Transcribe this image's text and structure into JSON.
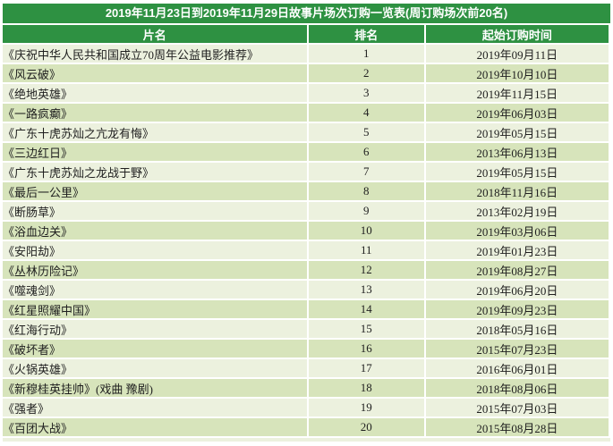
{
  "title": "2019年11月23日到2019年11月29日故事片场次订购一览表(周订购场次前20名)",
  "columns": {
    "film": "片名",
    "rank": "排名",
    "date": "起始订购时间"
  },
  "colors": {
    "header_green": "#2e9142",
    "row_light": "#ecf1de",
    "row_green": "#d7e4bb",
    "header_text": "#ffffff",
    "body_text": "#1f1f1f"
  },
  "rows": [
    {
      "name": "《庆祝中华人民共和国成立70周年公益电影推荐》",
      "rank": "1",
      "date": "2019年09月11日"
    },
    {
      "name": "《风云破》",
      "rank": "2",
      "date": "2019年10月10日"
    },
    {
      "name": "《绝地英雄》",
      "rank": "3",
      "date": "2019年11月15日"
    },
    {
      "name": "《一路疯癫》",
      "rank": "4",
      "date": "2019年06月03日"
    },
    {
      "name": "《广东十虎苏灿之亢龙有悔》",
      "rank": "5",
      "date": "2019年05月15日"
    },
    {
      "name": "《三边红日》",
      "rank": "6",
      "date": "2013年06月13日"
    },
    {
      "name": "《广东十虎苏灿之龙战于野》",
      "rank": "7",
      "date": "2019年05月15日"
    },
    {
      "name": "《最后一公里》",
      "rank": "8",
      "date": "2018年11月16日"
    },
    {
      "name": "《断肠草》",
      "rank": "9",
      "date": "2013年02月19日"
    },
    {
      "name": "《浴血边关》",
      "rank": "10",
      "date": "2019年03月06日"
    },
    {
      "name": "《安阳劫》",
      "rank": "11",
      "date": "2019年01月23日"
    },
    {
      "name": "《丛林历险记》",
      "rank": "12",
      "date": "2019年08月27日"
    },
    {
      "name": "《噬魂剑》",
      "rank": "13",
      "date": "2019年06月20日"
    },
    {
      "name": "《红星照耀中国》",
      "rank": "14",
      "date": "2019年09月23日"
    },
    {
      "name": "《红海行动》",
      "rank": "15",
      "date": "2018年05月16日"
    },
    {
      "name": "《破坏者》",
      "rank": "16",
      "date": "2015年07月23日"
    },
    {
      "name": "《火锅英雄》",
      "rank": "17",
      "date": "2016年06月01日"
    },
    {
      "name": "《新穆桂英挂帅》(戏曲 豫剧)",
      "rank": "18",
      "date": "2018年08月06日"
    },
    {
      "name": "《强者》",
      "rank": "19",
      "date": "2015年07月03日"
    },
    {
      "name": "《百团大战》",
      "rank": "20",
      "date": "2015年08月28日"
    }
  ]
}
